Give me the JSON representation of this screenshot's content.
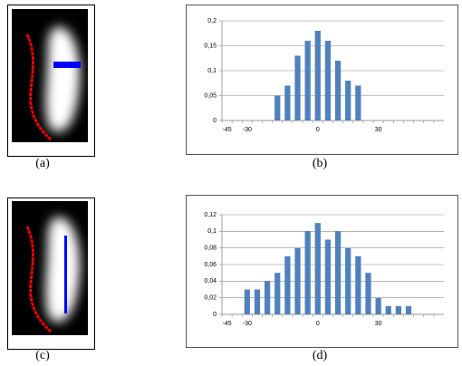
{
  "captions": [
    "(a)",
    "(b)",
    "(c)",
    "(d)"
  ],
  "chart_data": [
    {
      "type": "bar",
      "color": "#4f81bd",
      "grid": true,
      "categories": [
        "-45",
        null,
        "-30",
        null,
        null,
        null,
        null,
        null,
        null,
        "0",
        null,
        null,
        null,
        null,
        null,
        "30",
        null,
        null,
        null,
        null,
        null,
        null
      ],
      "values": [
        null,
        null,
        null,
        null,
        null,
        0.05,
        0.07,
        0.13,
        0.16,
        0.18,
        0.16,
        0.12,
        0.08,
        0.07,
        null,
        null,
        null,
        null,
        null,
        null,
        null,
        null
      ],
      "ylim": [
        0,
        0.2
      ],
      "yticks": [
        0,
        {
          "value": 0.05,
          "label": "0,05"
        },
        {
          "value": 0.1,
          "label": "0,1"
        },
        {
          "value": 0.15,
          "label": "0,15"
        },
        {
          "value": 0.2,
          "label": "0,2"
        }
      ]
    },
    {
      "type": "bar",
      "color": "#4f81bd",
      "grid": true,
      "categories": [
        "-45",
        null,
        "-30",
        null,
        null,
        null,
        null,
        null,
        null,
        "0",
        null,
        null,
        null,
        null,
        null,
        "30",
        null,
        null,
        null,
        null,
        null,
        null
      ],
      "values": [
        null,
        null,
        0.03,
        0.03,
        0.04,
        0.05,
        0.07,
        0.08,
        0.1,
        0.11,
        0.09,
        0.1,
        0.08,
        0.07,
        0.05,
        0.02,
        0.01,
        0.01,
        0.01,
        null,
        null,
        null
      ],
      "ylim": [
        0,
        0.12
      ],
      "yticks": [
        0,
        {
          "value": 0.02,
          "label": "0,02"
        },
        {
          "value": 0.04,
          "label": "0,04"
        },
        {
          "value": 0.06,
          "label": "0,06"
        },
        {
          "value": 0.08,
          "label": "0,08"
        },
        {
          "value": 0.1,
          "label": "0,1"
        },
        {
          "value": 0.12,
          "label": "0,12"
        }
      ]
    }
  ]
}
